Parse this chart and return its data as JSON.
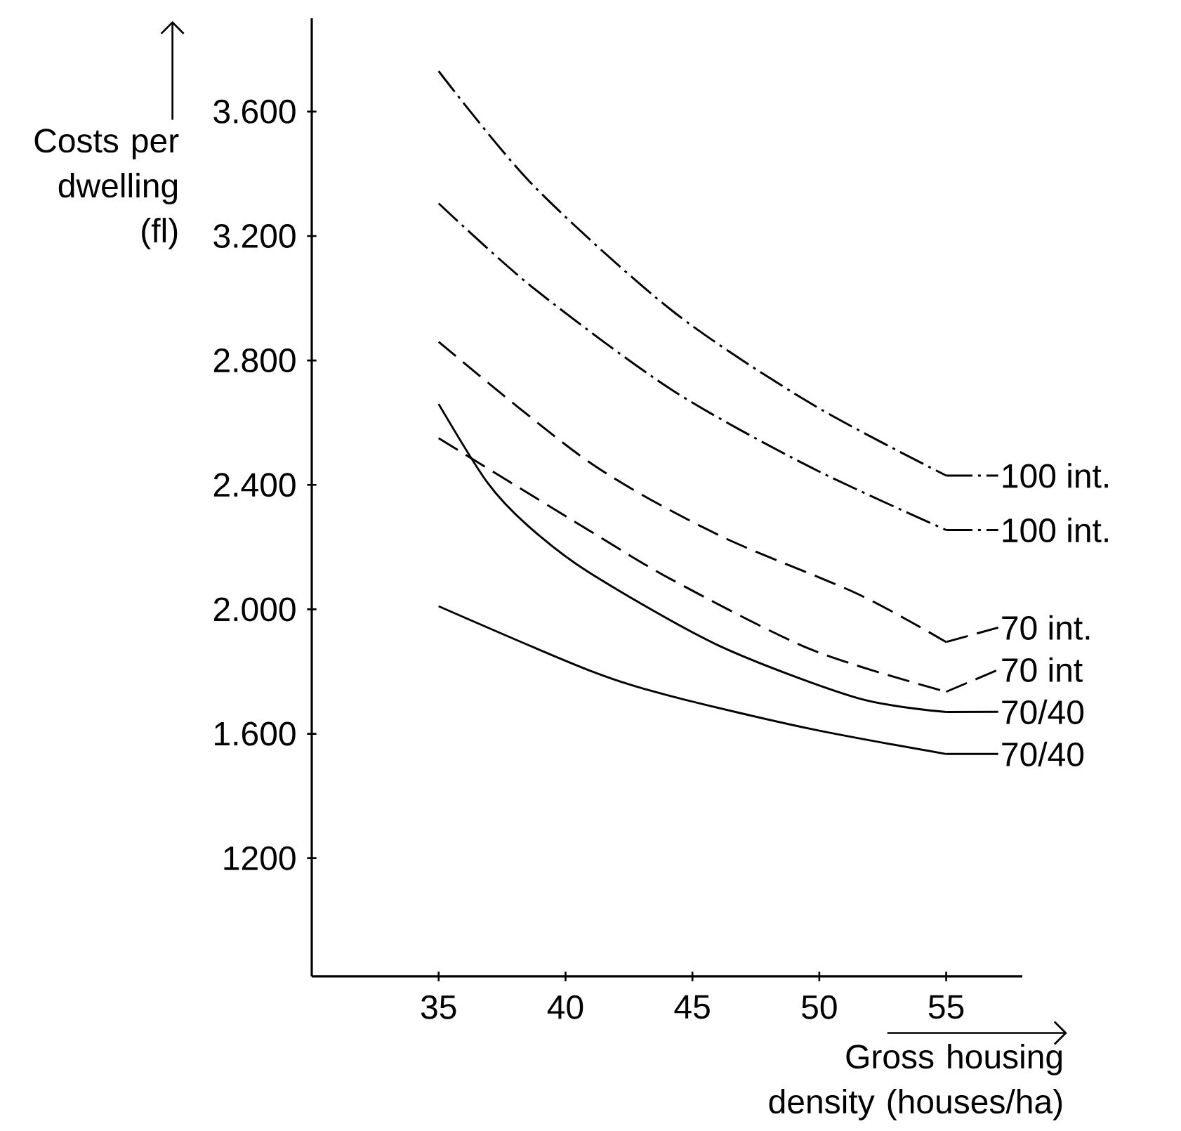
{
  "chart_data": {
    "type": "line",
    "xlabel": "Gross housing density (houses/ha)",
    "ylabel": "Costs per dwelling (fl)",
    "xlim": [
      30,
      58
    ],
    "xticks": [
      35,
      40,
      45,
      50,
      55
    ],
    "ylim": [
      820,
      3900
    ],
    "yticks": [
      {
        "value": 1200,
        "label": "1200"
      },
      {
        "value": 1600,
        "label": "1.600"
      },
      {
        "value": 2000,
        "label": "2.000"
      },
      {
        "value": 2400,
        "label": "2.400"
      },
      {
        "value": 2800,
        "label": "2.800"
      },
      {
        "value": 3200,
        "label": "3.200"
      },
      {
        "value": 3600,
        "label": "3.600"
      }
    ],
    "grid": false,
    "legend": "right",
    "marker": "none",
    "series": [
      {
        "name": "100 int.",
        "color": "#000000",
        "line_style": "dashdot",
        "x": [
          35,
          38.7,
          44.2,
          49.7,
          55
        ],
        "values": [
          3730,
          3365,
          2960,
          2660,
          2430
        ]
      },
      {
        "name": "100 int.",
        "color": "#000000",
        "line_style": "dashdot",
        "x": [
          35,
          38.7,
          44.2,
          49.7,
          55
        ],
        "values": [
          3305,
          3035,
          2705,
          2455,
          2255
        ]
      },
      {
        "name": "70 int.",
        "color": "#000000",
        "line_style": "dashed",
        "x": [
          35,
          40.9,
          46.0,
          51.5,
          55
        ],
        "values": [
          2860,
          2475,
          2240,
          2050,
          1895
        ]
      },
      {
        "name": "70 int",
        "color": "#000000",
        "line_style": "dashed",
        "x": [
          35,
          40.9,
          44.2,
          49.7,
          55
        ],
        "values": [
          2550,
          2255,
          2095,
          1870,
          1735
        ]
      },
      {
        "name": "70/40",
        "color": "#000000",
        "line_style": "solid",
        "x": [
          35,
          36.9,
          38.5,
          40.9,
          46.0,
          51.5,
          55
        ],
        "values": [
          2660,
          2410,
          2270,
          2120,
          1885,
          1715,
          1670
        ]
      },
      {
        "name": "70/40",
        "color": "#000000",
        "line_style": "solid",
        "x": [
          35,
          40.9,
          44.2,
          49.7,
          55
        ],
        "values": [
          2010,
          1805,
          1720,
          1615,
          1535
        ]
      }
    ]
  }
}
